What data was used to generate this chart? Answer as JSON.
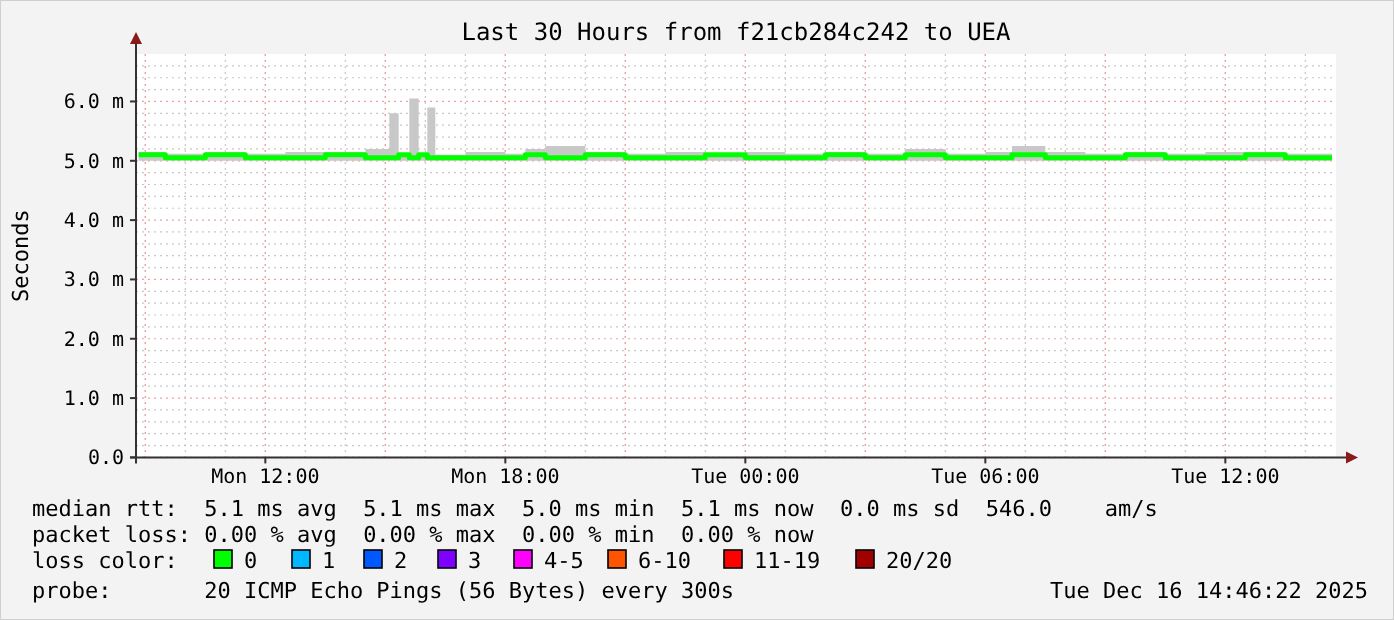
{
  "chart_data": {
    "type": "line",
    "title": "Last 30 Hours from f21cb284c242 to UEA",
    "ylabel": "Seconds",
    "xlim": [
      "2025-12-15T08:46",
      "2025-12-16T14:46"
    ],
    "xticks": [
      {
        "value": "2025-12-15T12:00",
        "label": "Mon 12:00"
      },
      {
        "value": "2025-12-15T18:00",
        "label": "Mon 18:00"
      },
      {
        "value": "2025-12-16T00:00",
        "label": "Tue 00:00"
      },
      {
        "value": "2025-12-16T06:00",
        "label": "Tue 06:00"
      },
      {
        "value": "2025-12-16T12:00",
        "label": "Tue 12:00"
      }
    ],
    "ylim": [
      0,
      6.8
    ],
    "yticks": [
      {
        "value": 0,
        "label": "0.0"
      },
      {
        "value": 1,
        "label": "1.0 m"
      },
      {
        "value": 2,
        "label": "2.0 m"
      },
      {
        "value": 3,
        "label": "3.0 m"
      },
      {
        "value": 4,
        "label": "4.0 m"
      },
      {
        "value": 5,
        "label": "5.0 m"
      },
      {
        "value": 6,
        "label": "6.0 m"
      }
    ],
    "grid": true,
    "legend": "bottom",
    "legend_title": "loss color:",
    "series": [
      {
        "name": "0",
        "color": "#00ff00",
        "x": [
          "2025-12-15T08:50",
          "2025-12-15T09:30",
          "2025-12-15T10:30",
          "2025-12-15T11:30",
          "2025-12-15T12:30",
          "2025-12-15T13:30",
          "2025-12-15T14:30",
          "2025-12-15T15:06",
          "2025-12-15T15:20",
          "2025-12-15T15:36",
          "2025-12-15T15:50",
          "2025-12-15T16:03",
          "2025-12-15T16:15",
          "2025-12-15T17:00",
          "2025-12-15T18:00",
          "2025-12-15T18:30",
          "2025-12-15T19:00",
          "2025-12-15T20:00",
          "2025-12-15T21:00",
          "2025-12-15T22:00",
          "2025-12-15T23:00",
          "2025-12-16T00:00",
          "2025-12-16T01:00",
          "2025-12-16T02:00",
          "2025-12-16T03:00",
          "2025-12-16T04:00",
          "2025-12-16T05:00",
          "2025-12-16T06:00",
          "2025-12-16T06:40",
          "2025-12-16T07:30",
          "2025-12-16T08:30",
          "2025-12-16T09:30",
          "2025-12-16T10:30",
          "2025-12-16T11:30",
          "2025-12-16T12:30",
          "2025-12-16T13:30",
          "2025-12-16T14:40"
        ],
        "values": [
          5.1,
          5.05,
          5.1,
          5.05,
          5.05,
          5.1,
          5.05,
          5.05,
          5.1,
          5.05,
          5.1,
          5.05,
          5.05,
          5.05,
          5.05,
          5.1,
          5.05,
          5.1,
          5.05,
          5.05,
          5.1,
          5.05,
          5.05,
          5.1,
          5.05,
          5.1,
          5.05,
          5.05,
          5.1,
          5.05,
          5.05,
          5.1,
          5.05,
          5.05,
          5.1,
          5.05,
          5.05
        ],
        "lower": [
          5,
          5,
          5,
          5,
          5,
          5,
          5,
          5,
          5,
          5,
          5,
          5,
          5,
          5,
          5,
          5,
          5,
          5,
          5,
          5,
          5,
          5,
          5,
          5,
          5,
          5,
          5,
          5,
          5,
          5,
          5,
          5,
          5,
          5,
          5,
          5,
          5
        ],
        "upper": [
          5.15,
          5.12,
          5.15,
          5.12,
          5.15,
          5.15,
          5.2,
          5.8,
          5.1,
          6.05,
          5.1,
          5.9,
          5.1,
          5.15,
          5.12,
          5.2,
          5.25,
          5.15,
          5.12,
          5.15,
          5.12,
          5.15,
          5.12,
          5.15,
          5.12,
          5.2,
          5.12,
          5.15,
          5.25,
          5.15,
          5.12,
          5.15,
          5.12,
          5.15,
          5.15,
          5.12,
          5.15
        ]
      },
      {
        "name": "1",
        "color": "#00b8ff"
      },
      {
        "name": "2",
        "color": "#0059ff"
      },
      {
        "name": "3",
        "color": "#7e00ff"
      },
      {
        "name": "4-5",
        "color": "#ff00ff"
      },
      {
        "name": "6-10",
        "color": "#ff5500"
      },
      {
        "name": "11-19",
        "color": "#ff0000"
      },
      {
        "name": "20/20",
        "color": "#a10000"
      }
    ],
    "annotations": [
      "median rtt:  5.1 ms avg  5.1 ms max  5.0 ms min  5.1 ms now  0.0 ms sd  546.0    am/s",
      "packet loss: 0.00 % avg  0.00 % max  0.00 % min  0.00 % now",
      "probe:       20 ICMP Echo Pings (56 Bytes) every 300s",
      "Tue Dec 16 14:46:22 2025"
    ]
  }
}
